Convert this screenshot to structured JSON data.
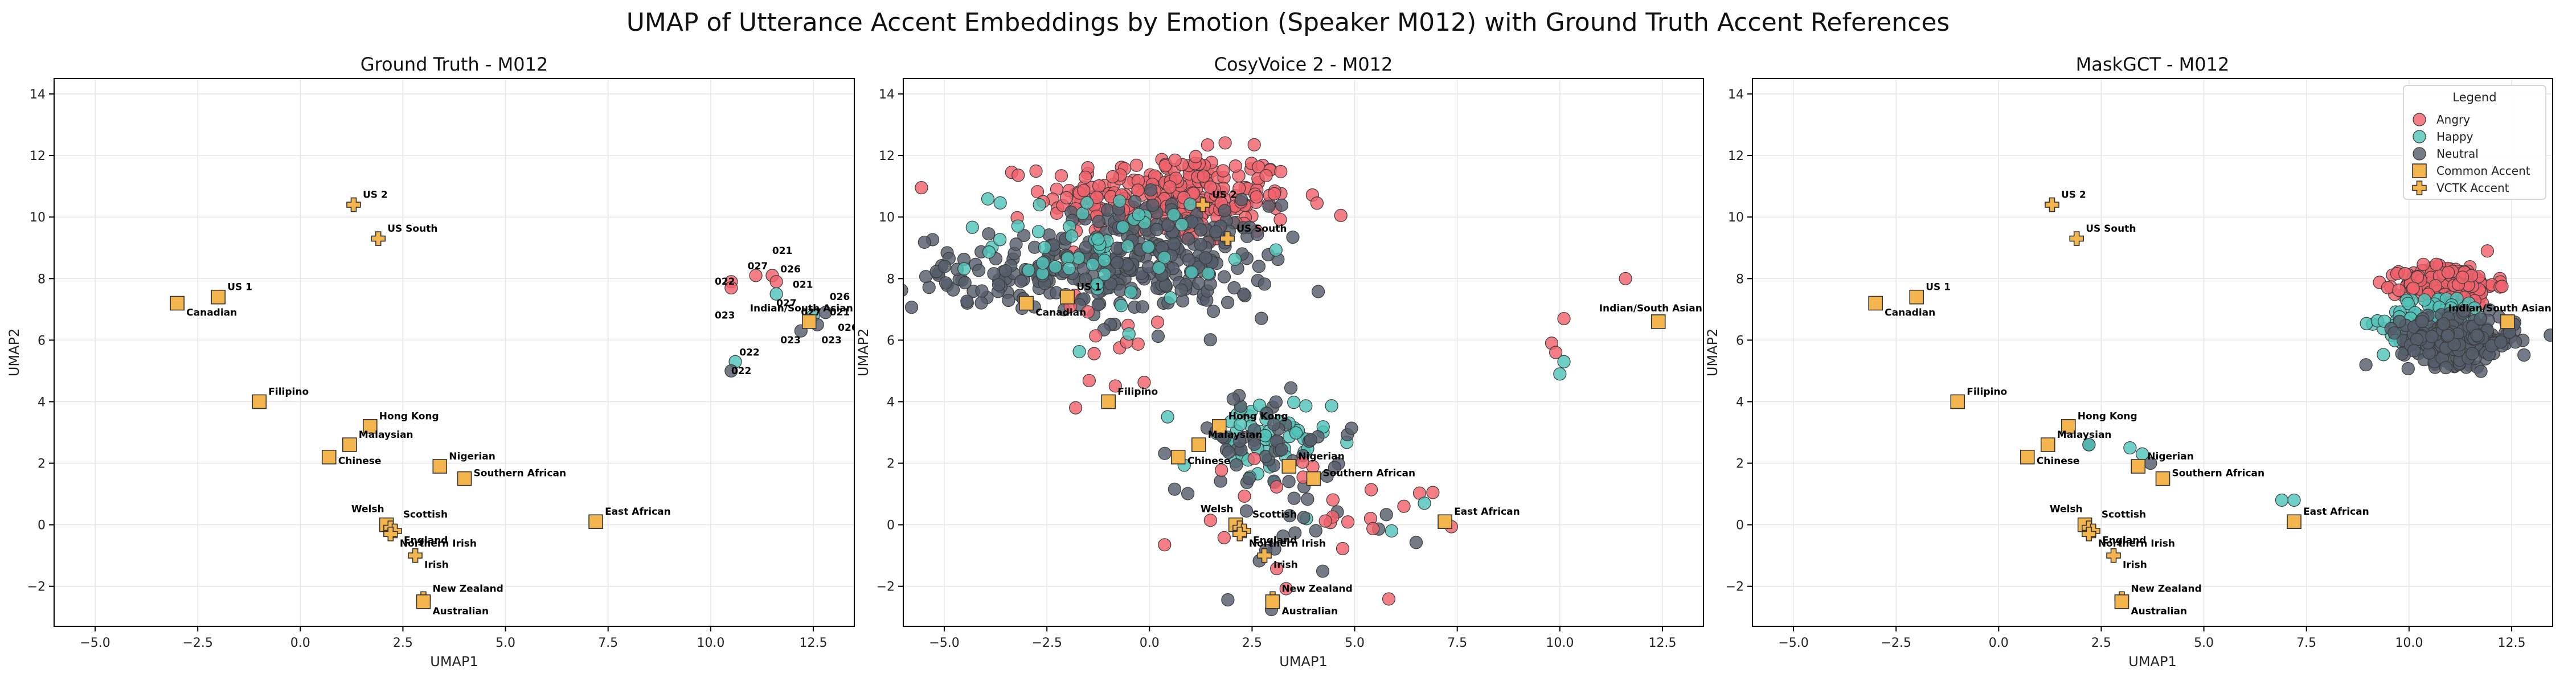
{
  "figure": {
    "title": "UMAP of Utterance Accent Embeddings by Emotion (Speaker M012) with Ground Truth Accent References"
  },
  "legend": {
    "title": "Legend",
    "items": [
      {
        "label": "Angry",
        "kind": "circle",
        "color": "#f0626b"
      },
      {
        "label": "Happy",
        "kind": "circle",
        "color": "#4fc3b8"
      },
      {
        "label": "Neutral",
        "kind": "circle",
        "color": "#555e6b"
      },
      {
        "label": "Common Accent",
        "kind": "square",
        "color": "#f5b54e"
      },
      {
        "label": "VCTK Accent",
        "kind": "plus",
        "color": "#f5b54e"
      }
    ]
  },
  "colors": {
    "angry": "#f0626b",
    "happy": "#4fc3b8",
    "neutral": "#555e6b",
    "reference": "#f5b54e"
  },
  "chart_data": [
    {
      "type": "scatter",
      "title": "Ground Truth - M012",
      "xlabel": "UMAP1",
      "ylabel": "UMAP2",
      "xlim": [
        -6,
        13.5
      ],
      "ylim": [
        -3.3,
        14.5
      ],
      "xticks": [
        -5,
        -2.5,
        0,
        2.5,
        5,
        7.5,
        10,
        12.5
      ],
      "yticks": [
        -2,
        0,
        2,
        4,
        6,
        8,
        10,
        12,
        14
      ],
      "xtick_labels": [
        "−5.0",
        "−2.5",
        "0.0",
        "2.5",
        "5.0",
        "7.5",
        "10.0",
        "12.5"
      ],
      "ytick_labels": [
        "−2",
        "0",
        "2",
        "4",
        "6",
        "8",
        "10",
        "12",
        "14"
      ],
      "grid": true,
      "clusters": [],
      "points": [
        {
          "x": 10.5,
          "y": 7.9,
          "emotion": "angry"
        },
        {
          "x": 11.1,
          "y": 8.1,
          "emotion": "angry"
        },
        {
          "x": 11.5,
          "y": 8.1,
          "emotion": "angry"
        },
        {
          "x": 11.6,
          "y": 7.9,
          "emotion": "angry"
        },
        {
          "x": 10.5,
          "y": 7.7,
          "emotion": "angry"
        },
        {
          "x": 11.6,
          "y": 7.5,
          "emotion": "happy"
        },
        {
          "x": 12.5,
          "y": 6.8,
          "emotion": "happy"
        },
        {
          "x": 10.6,
          "y": 5.3,
          "emotion": "happy"
        },
        {
          "x": 12.6,
          "y": 6.5,
          "emotion": "neutral"
        },
        {
          "x": 12.2,
          "y": 6.3,
          "emotion": "neutral"
        },
        {
          "x": 12.8,
          "y": 6.9,
          "emotion": "neutral"
        },
        {
          "x": 10.5,
          "y": 5.0,
          "emotion": "neutral"
        }
      ],
      "point_labels": [
        {
          "text": "021",
          "x": 11.5,
          "y": 8.8
        },
        {
          "text": "027",
          "x": 10.9,
          "y": 8.3
        },
        {
          "text": "026",
          "x": 11.7,
          "y": 8.2
        },
        {
          "text": "022",
          "x": 10.1,
          "y": 7.8
        },
        {
          "text": "021",
          "x": 12.0,
          "y": 7.7
        },
        {
          "text": "027",
          "x": 11.6,
          "y": 7.1
        },
        {
          "text": "026",
          "x": 12.9,
          "y": 7.3
        },
        {
          "text": "027",
          "x": 12.2,
          "y": 6.8
        },
        {
          "text": "021",
          "x": 12.9,
          "y": 6.8
        },
        {
          "text": "023",
          "x": 10.1,
          "y": 6.7
        },
        {
          "text": "026",
          "x": 13.1,
          "y": 6.3
        },
        {
          "text": "023",
          "x": 11.7,
          "y": 5.9
        },
        {
          "text": "023",
          "x": 12.7,
          "y": 5.9
        },
        {
          "text": "022",
          "x": 10.7,
          "y": 5.5
        },
        {
          "text": "022",
          "x": 10.5,
          "y": 4.9
        }
      ],
      "references": [
        {
          "label": "US 2",
          "x": 1.3,
          "y": 10.4,
          "marker": "plus"
        },
        {
          "label": "US South",
          "x": 1.9,
          "y": 9.3,
          "marker": "plus"
        },
        {
          "label": "US 1",
          "x": -2.0,
          "y": 7.4,
          "marker": "square"
        },
        {
          "label": "Canadian",
          "x": -3.0,
          "y": 7.2,
          "marker": "square"
        },
        {
          "label": "Indian/South Asian",
          "x": 12.4,
          "y": 6.6,
          "marker": "square"
        },
        {
          "label": "Filipino",
          "x": -1.0,
          "y": 4.0,
          "marker": "square"
        },
        {
          "label": "Hong Kong",
          "x": 1.7,
          "y": 3.2,
          "marker": "square"
        },
        {
          "label": "Malaysian",
          "x": 1.2,
          "y": 2.6,
          "marker": "square"
        },
        {
          "label": "Chinese",
          "x": 0.7,
          "y": 2.2,
          "marker": "square"
        },
        {
          "label": "Nigerian",
          "x": 3.4,
          "y": 1.9,
          "marker": "square"
        },
        {
          "label": "Southern African",
          "x": 4.0,
          "y": 1.5,
          "marker": "square"
        },
        {
          "label": "East African",
          "x": 7.2,
          "y": 0.1,
          "marker": "square"
        },
        {
          "label": "Welsh",
          "x": 2.1,
          "y": 0.0,
          "marker": "square"
        },
        {
          "label": "Scottish",
          "x": 2.2,
          "y": -0.1,
          "marker": "plus"
        },
        {
          "label": "England",
          "x": 2.3,
          "y": -0.2,
          "marker": "plus"
        },
        {
          "label": "Northern Irish",
          "x": 2.2,
          "y": -0.3,
          "marker": "plus"
        },
        {
          "label": "Irish",
          "x": 2.8,
          "y": -1.0,
          "marker": "plus"
        },
        {
          "label": "New Zealand",
          "x": 3.0,
          "y": -2.4,
          "marker": "plus"
        },
        {
          "label": "Australian",
          "x": 3.0,
          "y": -2.5,
          "marker": "square"
        }
      ]
    },
    {
      "type": "scatter",
      "title": "CosyVoice 2 - M012",
      "xlabel": "UMAP1",
      "ylabel": "UMAP2",
      "xlim": [
        -6,
        13.5
      ],
      "ylim": [
        -3.3,
        14.5
      ],
      "xticks": [
        -5,
        -2.5,
        0,
        2.5,
        5,
        7.5,
        10,
        12.5
      ],
      "yticks": [
        -2,
        0,
        2,
        4,
        6,
        8,
        10,
        12,
        14
      ],
      "xtick_labels": [
        "−5.0",
        "−2.5",
        "0.0",
        "2.5",
        "5.0",
        "7.5",
        "10.0",
        "12.5"
      ],
      "ytick_labels": [
        "−2",
        "0",
        "2",
        "4",
        "6",
        "8",
        "10",
        "12",
        "14"
      ],
      "grid": true,
      "clusters": [
        {
          "emotion": "angry",
          "count": 280,
          "cx": 0.5,
          "cy": 10.6,
          "sx": 1.5,
          "sy": 0.75
        },
        {
          "emotion": "neutral",
          "count": 240,
          "cx": 0.2,
          "cy": 8.6,
          "sx": 1.4,
          "sy": 0.9
        },
        {
          "emotion": "neutral",
          "count": 90,
          "cx": -3.3,
          "cy": 8.2,
          "sx": 1.2,
          "sy": 0.6
        },
        {
          "emotion": "happy",
          "count": 55,
          "cx": -1.0,
          "cy": 9.1,
          "sx": 1.4,
          "sy": 0.9
        },
        {
          "emotion": "happy",
          "count": 55,
          "cx": 2.6,
          "cy": 2.6,
          "sx": 0.9,
          "sy": 0.8
        },
        {
          "emotion": "neutral",
          "count": 45,
          "cx": 2.7,
          "cy": 2.7,
          "sx": 1.0,
          "sy": 0.8
        },
        {
          "emotion": "neutral",
          "count": 25,
          "cx": 3.8,
          "cy": 0.2,
          "sx": 1.2,
          "sy": 1.2
        },
        {
          "emotion": "angry",
          "count": 25,
          "cx": 3.8,
          "cy": 0.0,
          "sx": 1.6,
          "sy": 1.5
        },
        {
          "emotion": "angry",
          "count": 12,
          "cx": -0.8,
          "cy": 5.5,
          "sx": 1.0,
          "sy": 0.9
        }
      ],
      "points": [
        {
          "x": 11.6,
          "y": 8.0,
          "emotion": "angry"
        },
        {
          "x": 10.1,
          "y": 6.7,
          "emotion": "angry"
        },
        {
          "x": 9.8,
          "y": 5.9,
          "emotion": "angry"
        },
        {
          "x": 9.9,
          "y": 5.6,
          "emotion": "angry"
        },
        {
          "x": 10.1,
          "y": 5.3,
          "emotion": "happy"
        },
        {
          "x": 10.0,
          "y": 4.9,
          "emotion": "happy"
        },
        {
          "x": 6.7,
          "y": 0.7,
          "emotion": "happy"
        },
        {
          "x": 6.2,
          "y": 0.6,
          "emotion": "angry"
        },
        {
          "x": 5.9,
          "y": -0.2,
          "emotion": "happy"
        },
        {
          "x": -0.5,
          "y": 6.2,
          "emotion": "happy"
        },
        {
          "x": -1.8,
          "y": 3.8,
          "emotion": "angry"
        }
      ],
      "point_labels": [],
      "references": [
        {
          "label": "US 2",
          "x": 1.3,
          "y": 10.4,
          "marker": "plus"
        },
        {
          "label": "US South",
          "x": 1.9,
          "y": 9.3,
          "marker": "plus"
        },
        {
          "label": "US 1",
          "x": -2.0,
          "y": 7.4,
          "marker": "square"
        },
        {
          "label": "Canadian",
          "x": -3.0,
          "y": 7.2,
          "marker": "square"
        },
        {
          "label": "Indian/South Asian",
          "x": 12.4,
          "y": 6.6,
          "marker": "square"
        },
        {
          "label": "Filipino",
          "x": -1.0,
          "y": 4.0,
          "marker": "square"
        },
        {
          "label": "Hong Kong",
          "x": 1.7,
          "y": 3.2,
          "marker": "square"
        },
        {
          "label": "Malaysian",
          "x": 1.2,
          "y": 2.6,
          "marker": "square"
        },
        {
          "label": "Chinese",
          "x": 0.7,
          "y": 2.2,
          "marker": "square"
        },
        {
          "label": "Nigerian",
          "x": 3.4,
          "y": 1.9,
          "marker": "square"
        },
        {
          "label": "Southern African",
          "x": 4.0,
          "y": 1.5,
          "marker": "square"
        },
        {
          "label": "East African",
          "x": 7.2,
          "y": 0.1,
          "marker": "square"
        },
        {
          "label": "Welsh",
          "x": 2.1,
          "y": 0.0,
          "marker": "square"
        },
        {
          "label": "Scottish",
          "x": 2.2,
          "y": -0.1,
          "marker": "plus"
        },
        {
          "label": "England",
          "x": 2.3,
          "y": -0.2,
          "marker": "plus"
        },
        {
          "label": "Northern Irish",
          "x": 2.2,
          "y": -0.3,
          "marker": "plus"
        },
        {
          "label": "Irish",
          "x": 2.8,
          "y": -1.0,
          "marker": "plus"
        },
        {
          "label": "New Zealand",
          "x": 3.0,
          "y": -2.4,
          "marker": "plus"
        },
        {
          "label": "Australian",
          "x": 3.0,
          "y": -2.5,
          "marker": "square"
        }
      ]
    },
    {
      "type": "scatter",
      "title": "MaskGCT - M012",
      "xlabel": "UMAP1",
      "ylabel": "UMAP2",
      "xlim": [
        -6,
        13.5
      ],
      "ylim": [
        -3.3,
        14.5
      ],
      "xticks": [
        -5,
        -2.5,
        0,
        2.5,
        5,
        7.5,
        10,
        12.5
      ],
      "yticks": [
        -2,
        0,
        2,
        4,
        6,
        8,
        10,
        12,
        14
      ],
      "xtick_labels": [
        "−5.0",
        "−2.5",
        "0.0",
        "2.5",
        "5.0",
        "7.5",
        "10.0",
        "12.5"
      ],
      "ytick_labels": [
        "−2",
        "0",
        "2",
        "4",
        "6",
        "8",
        "10",
        "12",
        "14"
      ],
      "grid": true,
      "legend_position": "upper right",
      "clusters": [
        {
          "emotion": "angry",
          "count": 230,
          "cx": 11.0,
          "cy": 7.8,
          "sx": 0.55,
          "sy": 0.32
        },
        {
          "emotion": "happy",
          "count": 120,
          "cx": 10.7,
          "cy": 6.6,
          "sx": 0.65,
          "sy": 0.45
        },
        {
          "emotion": "neutral",
          "count": 260,
          "cx": 11.2,
          "cy": 6.0,
          "sx": 0.7,
          "sy": 0.38
        }
      ],
      "points": [
        {
          "x": 2.2,
          "y": 2.6,
          "emotion": "neutral"
        },
        {
          "x": 2.2,
          "y": 2.6,
          "emotion": "happy"
        },
        {
          "x": 3.2,
          "y": 2.5,
          "emotion": "happy"
        },
        {
          "x": 3.5,
          "y": 2.3,
          "emotion": "happy"
        },
        {
          "x": 3.7,
          "y": 2.0,
          "emotion": "neutral"
        },
        {
          "x": 6.9,
          "y": 0.8,
          "emotion": "happy"
        },
        {
          "x": 7.2,
          "y": 0.8,
          "emotion": "happy"
        }
      ],
      "point_labels": [],
      "references": [
        {
          "label": "US 2",
          "x": 1.3,
          "y": 10.4,
          "marker": "plus"
        },
        {
          "label": "US South",
          "x": 1.9,
          "y": 9.3,
          "marker": "plus"
        },
        {
          "label": "US 1",
          "x": -2.0,
          "y": 7.4,
          "marker": "square"
        },
        {
          "label": "Canadian",
          "x": -3.0,
          "y": 7.2,
          "marker": "square"
        },
        {
          "label": "Indian/South Asian",
          "x": 12.4,
          "y": 6.6,
          "marker": "square"
        },
        {
          "label": "Filipino",
          "x": -1.0,
          "y": 4.0,
          "marker": "square"
        },
        {
          "label": "Hong Kong",
          "x": 1.7,
          "y": 3.2,
          "marker": "square"
        },
        {
          "label": "Malaysian",
          "x": 1.2,
          "y": 2.6,
          "marker": "square"
        },
        {
          "label": "Chinese",
          "x": 0.7,
          "y": 2.2,
          "marker": "square"
        },
        {
          "label": "Nigerian",
          "x": 3.4,
          "y": 1.9,
          "marker": "square"
        },
        {
          "label": "Southern African",
          "x": 4.0,
          "y": 1.5,
          "marker": "square"
        },
        {
          "label": "East African",
          "x": 7.2,
          "y": 0.1,
          "marker": "square"
        },
        {
          "label": "Welsh",
          "x": 2.1,
          "y": 0.0,
          "marker": "square"
        },
        {
          "label": "Scottish",
          "x": 2.2,
          "y": -0.1,
          "marker": "plus"
        },
        {
          "label": "England",
          "x": 2.3,
          "y": -0.2,
          "marker": "plus"
        },
        {
          "label": "Northern Irish",
          "x": 2.2,
          "y": -0.3,
          "marker": "plus"
        },
        {
          "label": "Irish",
          "x": 2.8,
          "y": -1.0,
          "marker": "plus"
        },
        {
          "label": "New Zealand",
          "x": 3.0,
          "y": -2.4,
          "marker": "plus"
        },
        {
          "label": "Australian",
          "x": 3.0,
          "y": -2.5,
          "marker": "square"
        }
      ]
    }
  ]
}
